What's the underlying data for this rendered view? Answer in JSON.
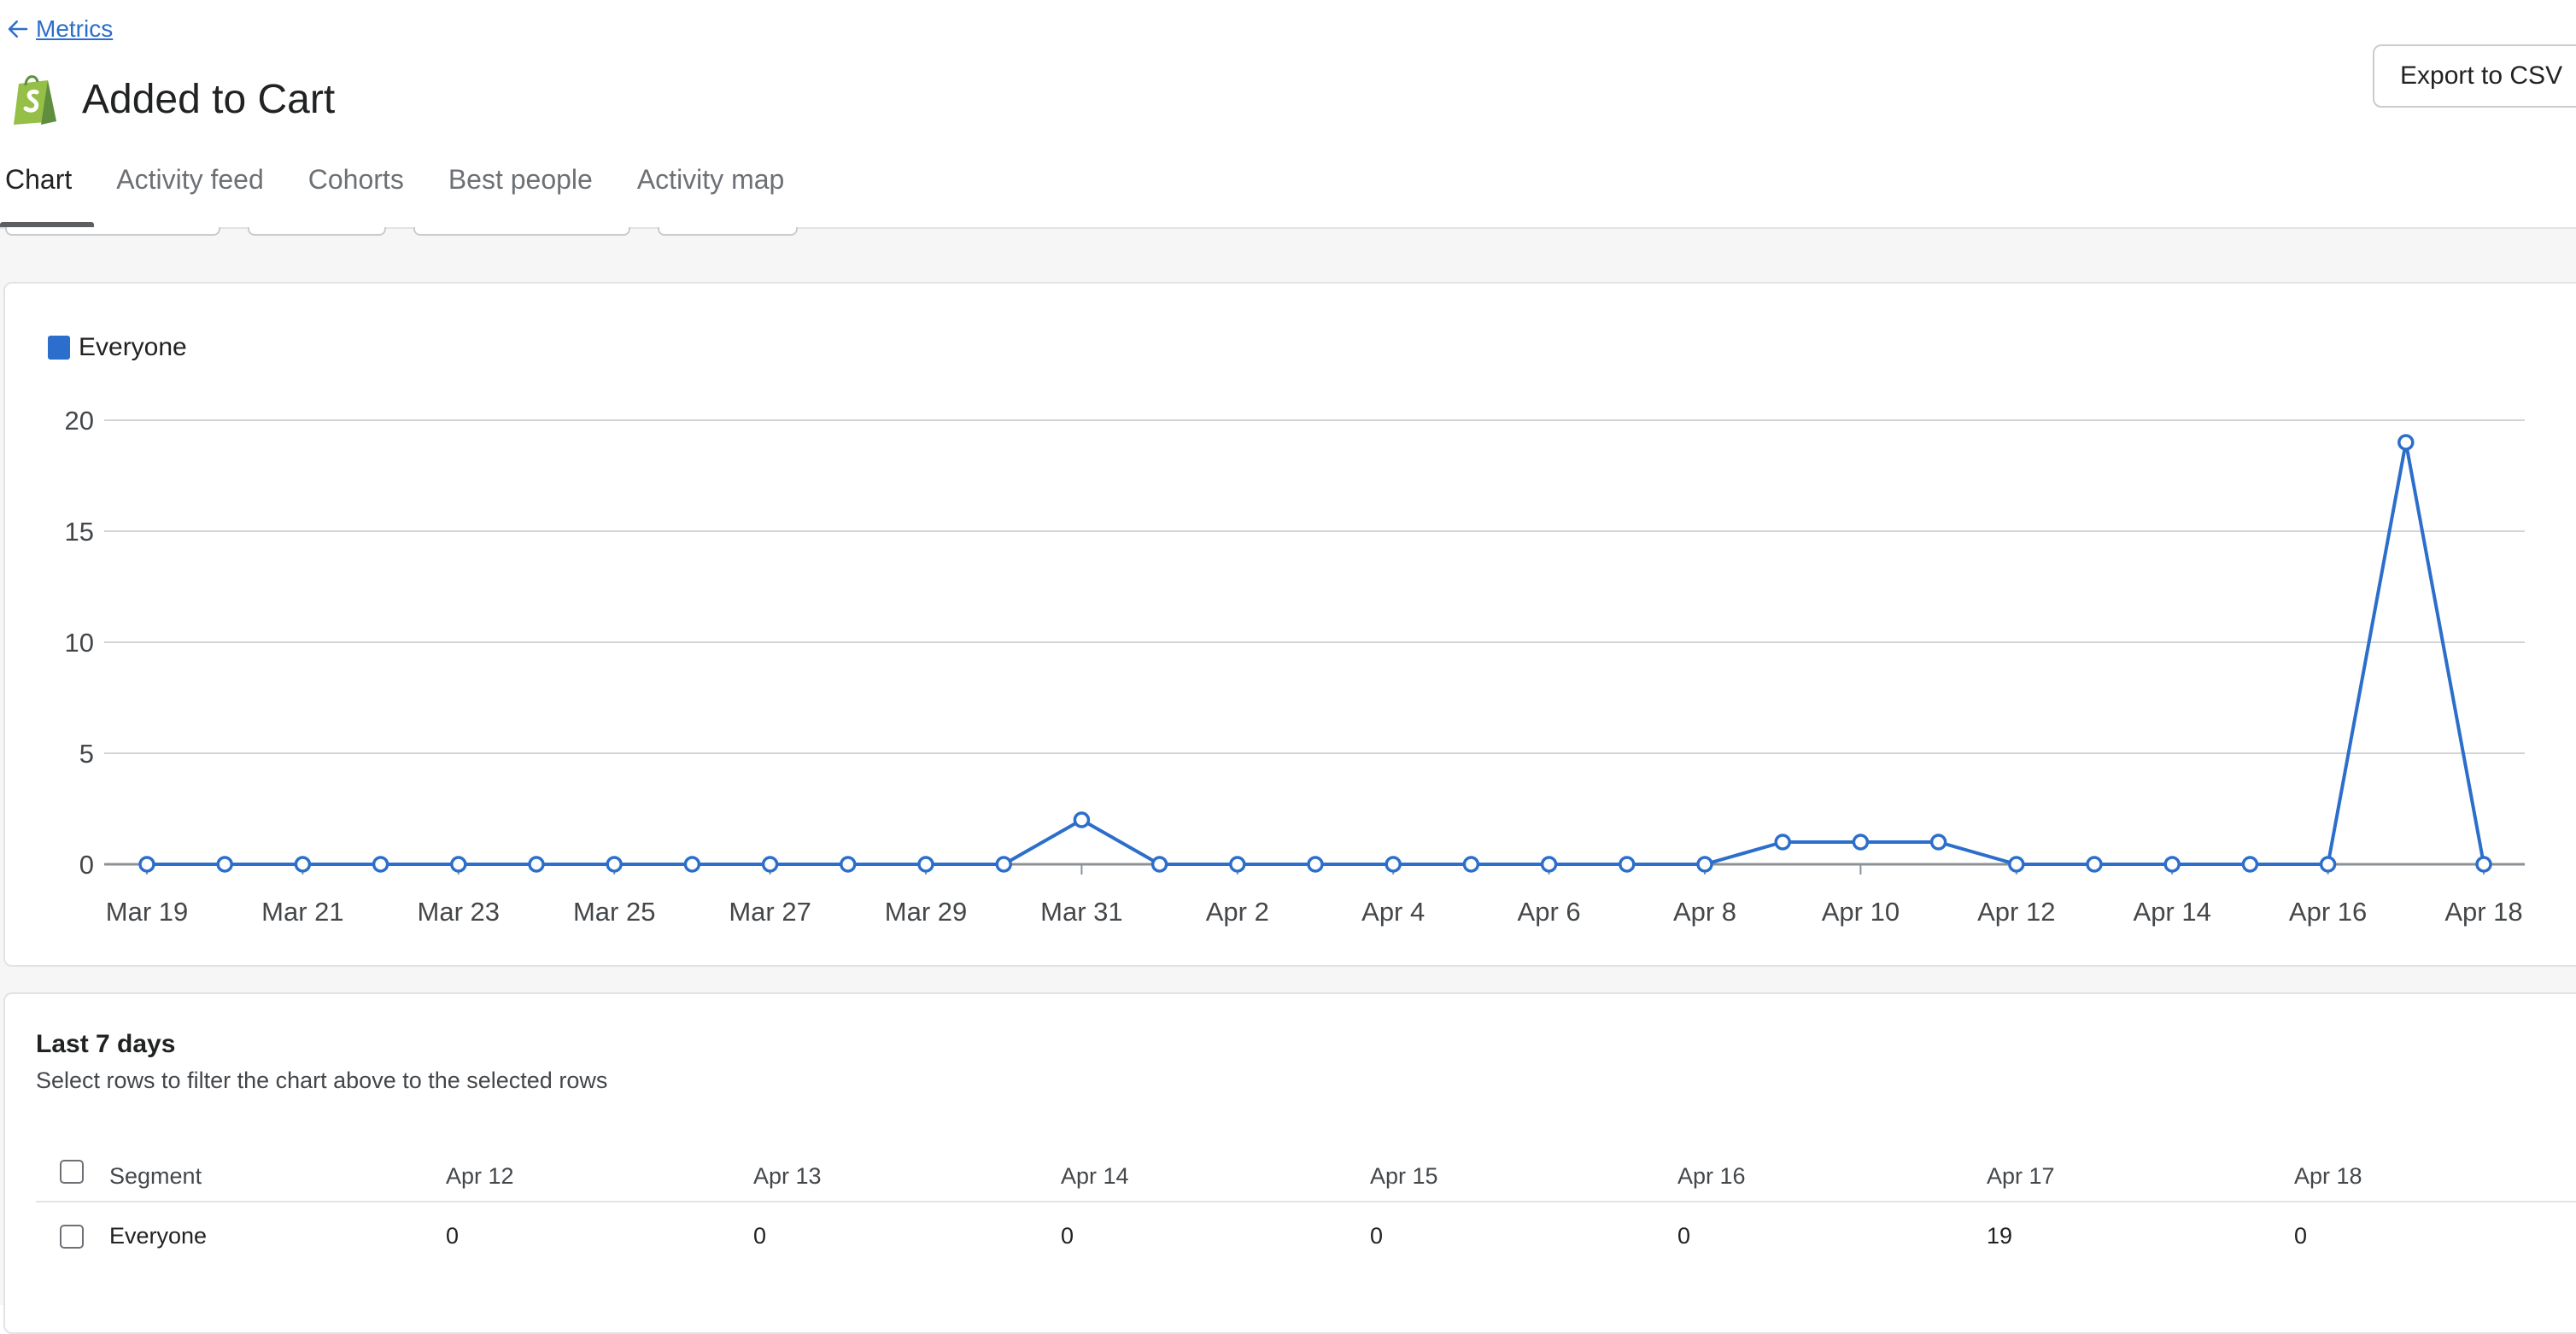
{
  "nav": {
    "back_label": "Metrics"
  },
  "page": {
    "title": "Added to Cart",
    "export_label": "Export to CSV"
  },
  "tabs": [
    {
      "label": "Chart",
      "active": true
    },
    {
      "label": "Activity feed",
      "active": false
    },
    {
      "label": "Cohorts",
      "active": false
    },
    {
      "label": "Best people",
      "active": false
    },
    {
      "label": "Activity map",
      "active": false
    }
  ],
  "colors": {
    "series": "#2c6ecb",
    "link": "#2c6ecb",
    "brand": "#95bf47"
  },
  "icons": {
    "back": "arrow-left-icon",
    "logo": "shopify-bag-icon"
  },
  "chart_data": {
    "type": "line",
    "x": [
      "Mar 19",
      "Mar 20",
      "Mar 21",
      "Mar 22",
      "Mar 23",
      "Mar 24",
      "Mar 25",
      "Mar 26",
      "Mar 27",
      "Mar 28",
      "Mar 29",
      "Mar 30",
      "Mar 31",
      "Apr 1",
      "Apr 2",
      "Apr 3",
      "Apr 4",
      "Apr 5",
      "Apr 6",
      "Apr 7",
      "Apr 8",
      "Apr 9",
      "Apr 10",
      "Apr 11",
      "Apr 12",
      "Apr 13",
      "Apr 14",
      "Apr 15",
      "Apr 16",
      "Apr 17",
      "Apr 18"
    ],
    "x_tick_labels": [
      "Mar 19",
      "Mar 21",
      "Mar 23",
      "Mar 25",
      "Mar 27",
      "Mar 29",
      "Mar 31",
      "Apr 2",
      "Apr 4",
      "Apr 6",
      "Apr 8",
      "Apr 10",
      "Apr 12",
      "Apr 14",
      "Apr 16",
      "Apr 18"
    ],
    "series": [
      {
        "name": "Everyone",
        "values": [
          0,
          0,
          0,
          0,
          0,
          0,
          0,
          0,
          0,
          0,
          0,
          0,
          2,
          0,
          0,
          0,
          0,
          0,
          0,
          0,
          0,
          1,
          1,
          1,
          0,
          0,
          0,
          0,
          0,
          19,
          0
        ]
      }
    ],
    "ylim": [
      0,
      20
    ],
    "y_ticks": [
      0,
      5,
      10,
      15,
      20
    ],
    "grid": true,
    "legend_placement": "top-left"
  },
  "table": {
    "title": "Last 7 days",
    "subtitle": "Select rows to filter the chart above to the selected rows",
    "columns": [
      "Segment",
      "Apr 12",
      "Apr 13",
      "Apr 14",
      "Apr 15",
      "Apr 16",
      "Apr 17",
      "Apr 18"
    ],
    "rows": [
      {
        "cells": [
          "Everyone",
          "0",
          "0",
          "0",
          "0",
          "0",
          "19",
          "0"
        ]
      }
    ]
  }
}
